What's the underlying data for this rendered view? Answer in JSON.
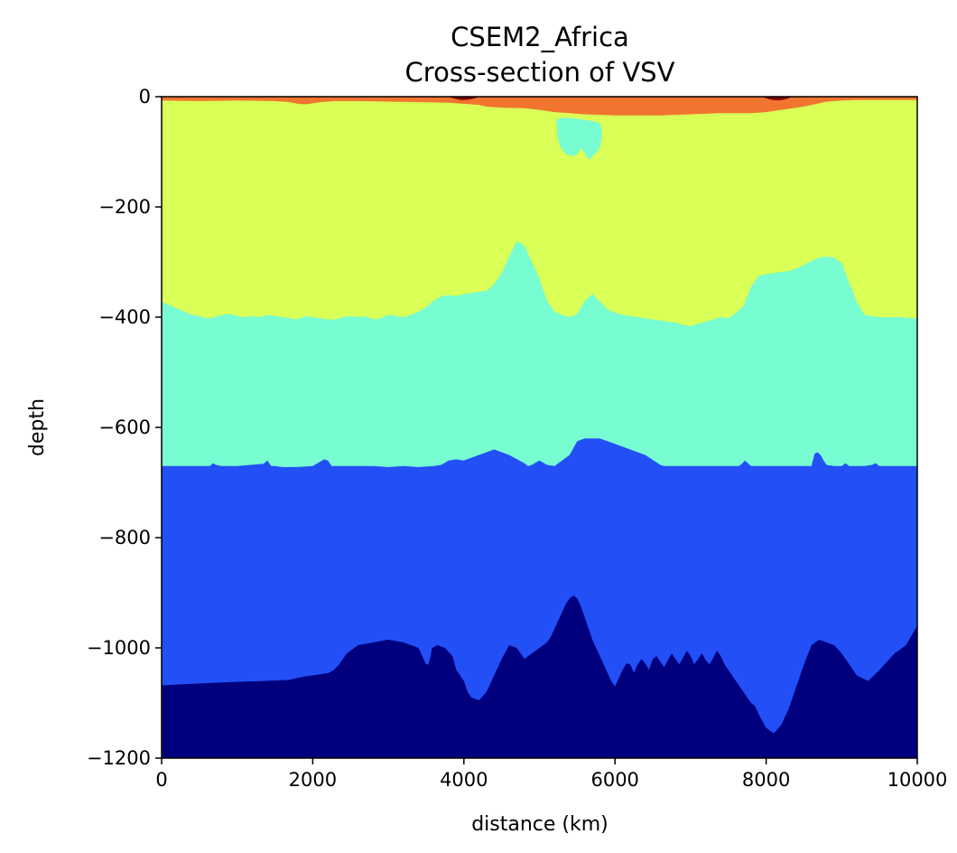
{
  "chart_data": {
    "type": "contour",
    "title": "CSEM2_Africa",
    "subtitle": "Cross-section of VSV",
    "xlabel": "distance (km)",
    "ylabel": "depth",
    "xlim": [
      0,
      10000
    ],
    "ylim": [
      -1200,
      0
    ],
    "xticks": [
      "0",
      "2000",
      "4000",
      "6000",
      "8000",
      "10000"
    ],
    "yticks": [
      "0",
      "−200",
      "−400",
      "−600",
      "−800",
      "−1000",
      "−1200"
    ],
    "colormap": "jet",
    "grid": false,
    "levels": [
      {
        "color": "#00007f"
      },
      {
        "color": "#2350f6"
      },
      {
        "color": "#78fcd2"
      },
      {
        "color": "#daff57"
      },
      {
        "color": "#f1752f"
      },
      {
        "color": "#7f0000"
      }
    ],
    "boundaries": {
      "dark_top": {
        "x": [
          0,
          450,
          900,
          1350,
          1700,
          1750,
          1820,
          1880,
          2000,
          2100,
          2200,
          2280,
          2350,
          2450,
          2600,
          2800,
          3000,
          3200,
          3400,
          3500,
          3530,
          3560,
          3580,
          3650,
          3750,
          3850,
          3900,
          4000,
          4050,
          4100,
          4200,
          4300,
          4400,
          4500,
          4600,
          4700,
          4800,
          4900,
          5000,
          5050,
          5100,
          5150,
          5200,
          5250,
          5300,
          5350,
          5400,
          5450,
          5500,
          5550,
          5600,
          5650,
          5700,
          5750,
          5800,
          5850,
          5900,
          5950,
          6000,
          6050,
          6100,
          6150,
          6200,
          6250,
          6300,
          6350,
          6400,
          6450,
          6500,
          6550,
          6600,
          6650,
          6700,
          6750,
          6800,
          6850,
          6900,
          6950,
          7000,
          7050,
          7100,
          7150,
          7200,
          7250,
          7300,
          7350,
          7400,
          7450,
          7500,
          7550,
          7600,
          7650,
          7700,
          7750,
          7800,
          7850,
          7900,
          8000,
          8100,
          8200,
          8300,
          8400,
          8500,
          8600,
          8700,
          8800,
          8900,
          9000,
          9100,
          9200,
          9350,
          9500,
          9700,
          9850,
          10000
        ],
        "y": [
          -1068,
          -1065,
          -1062,
          -1060,
          -1058,
          -1056,
          -1054,
          -1052,
          -1050,
          -1048,
          -1046,
          -1040,
          -1030,
          -1010,
          -995,
          -990,
          -985,
          -990,
          -1000,
          -1030,
          -1030,
          -1015,
          -1000,
          -995,
          -1000,
          -1015,
          -1040,
          -1060,
          -1080,
          -1090,
          -1095,
          -1080,
          -1050,
          -1020,
          -995,
          -1000,
          -1020,
          -1010,
          -1000,
          -995,
          -990,
          -980,
          -965,
          -950,
          -935,
          -920,
          -910,
          -905,
          -910,
          -925,
          -945,
          -965,
          -985,
          -1000,
          -1015,
          -1030,
          -1045,
          -1060,
          -1070,
          -1055,
          -1040,
          -1028,
          -1030,
          -1045,
          -1030,
          -1020,
          -1028,
          -1040,
          -1020,
          -1015,
          -1025,
          -1035,
          -1022,
          -1010,
          -1020,
          -1030,
          -1018,
          -1005,
          -1015,
          -1030,
          -1020,
          -1010,
          -1022,
          -1030,
          -1018,
          -1005,
          -1015,
          -1030,
          -1040,
          -1050,
          -1060,
          -1070,
          -1080,
          -1090,
          -1100,
          -1105,
          -1120,
          -1145,
          -1155,
          -1140,
          -1110,
          -1070,
          -1030,
          -995,
          -985,
          -990,
          -995,
          -1010,
          -1030,
          -1050,
          -1060,
          -1040,
          -1010,
          -995,
          -960
        ],
        "x_min_floor": [
          0,
          70,
          130,
          250,
          350,
          800,
          900,
          1000,
          1100,
          1200,
          1350,
          1500,
          1650,
          1700,
          1750,
          1800,
          1850,
          1900,
          1950,
          2000,
          2050,
          2100,
          2150,
          2200,
          2250,
          2300,
          2350,
          2400,
          2450,
          2500,
          2550,
          2600,
          2650,
          2700,
          2750,
          2800,
          2850,
          2900,
          2950,
          3000,
          3050,
          3100,
          3150,
          3200,
          3250,
          3300,
          3350,
          3400,
          3450,
          3500,
          3550,
          3600,
          3650,
          3700,
          3750,
          3800,
          3850,
          3900,
          3950,
          4000,
          4050,
          4100,
          4150,
          4200,
          4250,
          4300,
          4350,
          4400,
          4450,
          4500,
          4550,
          4600,
          4650,
          4700,
          4750,
          4800,
          4850,
          4900,
          4950,
          5000,
          5050,
          5100,
          5150,
          5200,
          5250,
          5300,
          5350,
          5400,
          5450,
          5500,
          5550,
          5600,
          5650,
          5700,
          5750,
          5800,
          5850,
          5900,
          5950,
          6000,
          6050,
          6100,
          6150,
          6200,
          6250,
          6300,
          6350,
          6400,
          6450,
          6500,
          6550,
          6600,
          6650,
          6700,
          6750,
          6800,
          6850,
          6900,
          6950,
          7000,
          7050,
          7100,
          7150,
          7200,
          7250,
          7300,
          7350,
          7400,
          7450,
          7500,
          7550,
          7600,
          7650,
          7700,
          7750,
          7800,
          7850,
          7900,
          7950,
          8000,
          8050,
          8100,
          8150,
          8200,
          8250,
          8300,
          8350,
          8400,
          8450,
          8500,
          8550,
          8600,
          8650,
          8700,
          8750,
          8800,
          8850,
          8900,
          8950,
          9000,
          9050,
          9100,
          9150,
          9200,
          9250,
          9300,
          9350,
          9400,
          9450,
          9500,
          9550,
          9600,
          9650,
          9700,
          9750,
          9800,
          9850,
          9900,
          9950,
          10000
        ]
      },
      "blue_top": {
        "x": [
          0,
          500,
          640,
          680,
          720,
          800,
          900,
          1000,
          1350,
          1400,
          1450,
          1500,
          1600,
          1800,
          2000,
          2100,
          2150,
          2200,
          2250,
          2350,
          2500,
          2800,
          3000,
          3200,
          3400,
          3600,
          3700,
          3800,
          3900,
          4000,
          4200,
          4400,
          4600,
          4800,
          4850,
          4900,
          4950,
          5000,
          5050,
          5100,
          5200,
          5300,
          5400,
          5500,
          5600,
          5800,
          6000,
          6200,
          6400,
          6600,
          6650,
          6700,
          6800,
          7000,
          7500,
          7640,
          7680,
          7720,
          7800,
          8000,
          8500,
          8600,
          8640,
          8680,
          8720,
          8760,
          8800,
          8900,
          9000,
          9050,
          9100,
          9200,
          9300,
          9400,
          9450,
          9500,
          9600,
          9700,
          9800,
          10000
        ],
        "y": [
          -670,
          -670,
          -670,
          -665,
          -668,
          -670,
          -670,
          -670,
          -666,
          -660,
          -670,
          -670,
          -672,
          -672,
          -670,
          -662,
          -658,
          -660,
          -670,
          -670,
          -670,
          -670,
          -672,
          -670,
          -672,
          -670,
          -668,
          -660,
          -658,
          -660,
          -650,
          -640,
          -650,
          -665,
          -670,
          -668,
          -664,
          -660,
          -664,
          -668,
          -670,
          -660,
          -650,
          -625,
          -620,
          -620,
          -630,
          -640,
          -650,
          -668,
          -670,
          -670,
          -670,
          -670,
          -670,
          -670,
          -666,
          -660,
          -670,
          -670,
          -670,
          -670,
          -648,
          -645,
          -650,
          -660,
          -668,
          -670,
          -670,
          -665,
          -670,
          -670,
          -670,
          -668,
          -665,
          -670,
          -670,
          -670,
          -670,
          -670
        ]
      },
      "cyan_top": {
        "x": [
          0,
          100,
          200,
          300,
          400,
          500,
          600,
          700,
          800,
          900,
          1000,
          1100,
          1200,
          1300,
          1400,
          1500,
          1600,
          1700,
          1800,
          1900,
          2000,
          2100,
          2200,
          2300,
          2400,
          2500,
          2600,
          2700,
          2800,
          2900,
          3000,
          3100,
          3200,
          3300,
          3400,
          3500,
          3600,
          3700,
          3800,
          3900,
          4000,
          4100,
          4200,
          4300,
          4400,
          4500,
          4600,
          4700,
          4800,
          4900,
          5000,
          5100,
          5200,
          5300,
          5400,
          5500,
          5600,
          5700,
          5800,
          5900,
          6000,
          6100,
          6200,
          6300,
          6400,
          6500,
          6600,
          6700,
          6800,
          6900,
          7000,
          7100,
          7200,
          7300,
          7400,
          7500,
          7600,
          7700,
          7800,
          7900,
          8000,
          8100,
          8200,
          8300,
          8400,
          8500,
          8600,
          8700,
          8800,
          8900,
          9000,
          9100,
          9200,
          9300,
          9400,
          9500,
          9600,
          9700,
          9800,
          9900,
          10000
        ],
        "y": [
          -372,
          -378,
          -384,
          -390,
          -396,
          -398,
          -402,
          -400,
          -396,
          -394,
          -398,
          -400,
          -398,
          -400,
          -396,
          -398,
          -400,
          -402,
          -404,
          -398,
          -400,
          -402,
          -404,
          -404,
          -400,
          -398,
          -400,
          -398,
          -404,
          -402,
          -396,
          -398,
          -400,
          -396,
          -390,
          -382,
          -370,
          -362,
          -360,
          -362,
          -358,
          -356,
          -354,
          -352,
          -340,
          -320,
          -290,
          -262,
          -270,
          -300,
          -330,
          -370,
          -390,
          -396,
          -400,
          -394,
          -370,
          -358,
          -372,
          -386,
          -392,
          -396,
          -398,
          -400,
          -402,
          -404,
          -406,
          -408,
          -410,
          -414,
          -416,
          -412,
          -408,
          -404,
          -400,
          -402,
          -392,
          -380,
          -345,
          -325,
          -322,
          -320,
          -318,
          -316,
          -312,
          -305,
          -298,
          -292,
          -290,
          -292,
          -302,
          -338,
          -372,
          -396,
          -398,
          -400,
          -400,
          -400,
          -400,
          -402,
          -402
        ]
      },
      "orange_bottom": {
        "x": [
          0,
          500,
          1000,
          1500,
          1700,
          1800,
          1900,
          2000,
          2100,
          2300,
          2600,
          3000,
          3500,
          3800,
          3900,
          4000,
          4100,
          4200,
          4300,
          4500,
          4800,
          5000,
          5200,
          5400,
          5600,
          5800,
          6000,
          6200,
          6400,
          6600,
          6800,
          7000,
          7200,
          7400,
          7600,
          7800,
          8000,
          8100,
          8200,
          8300,
          8400,
          8500,
          8600,
          8700,
          8800,
          8900,
          9000,
          9200,
          9400,
          9600,
          9800,
          10000
        ],
        "y": [
          -7,
          -8,
          -7,
          -8,
          -10,
          -13,
          -14,
          -12,
          -10,
          -8,
          -8,
          -9,
          -10,
          -11,
          -12,
          -13,
          -14,
          -15,
          -18,
          -20,
          -21,
          -24,
          -28,
          -30,
          -32,
          -33,
          -34,
          -34,
          -34,
          -34,
          -33,
          -32,
          -31,
          -30,
          -30,
          -30,
          -28,
          -26,
          -24,
          -22,
          -20,
          -18,
          -15,
          -12,
          -9,
          -8,
          -7,
          -6,
          -6,
          -6,
          -6,
          -6
        ]
      },
      "cyan_pocket": {
        "x": [
          5220,
          5300,
          5500,
          5700,
          5800,
          5830,
          5820,
          5790,
          5760,
          5730,
          5690,
          5660,
          5640,
          5600,
          5580,
          5550,
          5500,
          5450,
          5400,
          5350,
          5300,
          5260,
          5240,
          5230
        ],
        "y": [
          -42,
          -38,
          -40,
          -44,
          -48,
          -60,
          -80,
          -95,
          -100,
          -104,
          -110,
          -114,
          -112,
          -102,
          -98,
          -94,
          -104,
          -108,
          -106,
          -104,
          -96,
          -86,
          -70,
          -55
        ]
      }
    }
  }
}
